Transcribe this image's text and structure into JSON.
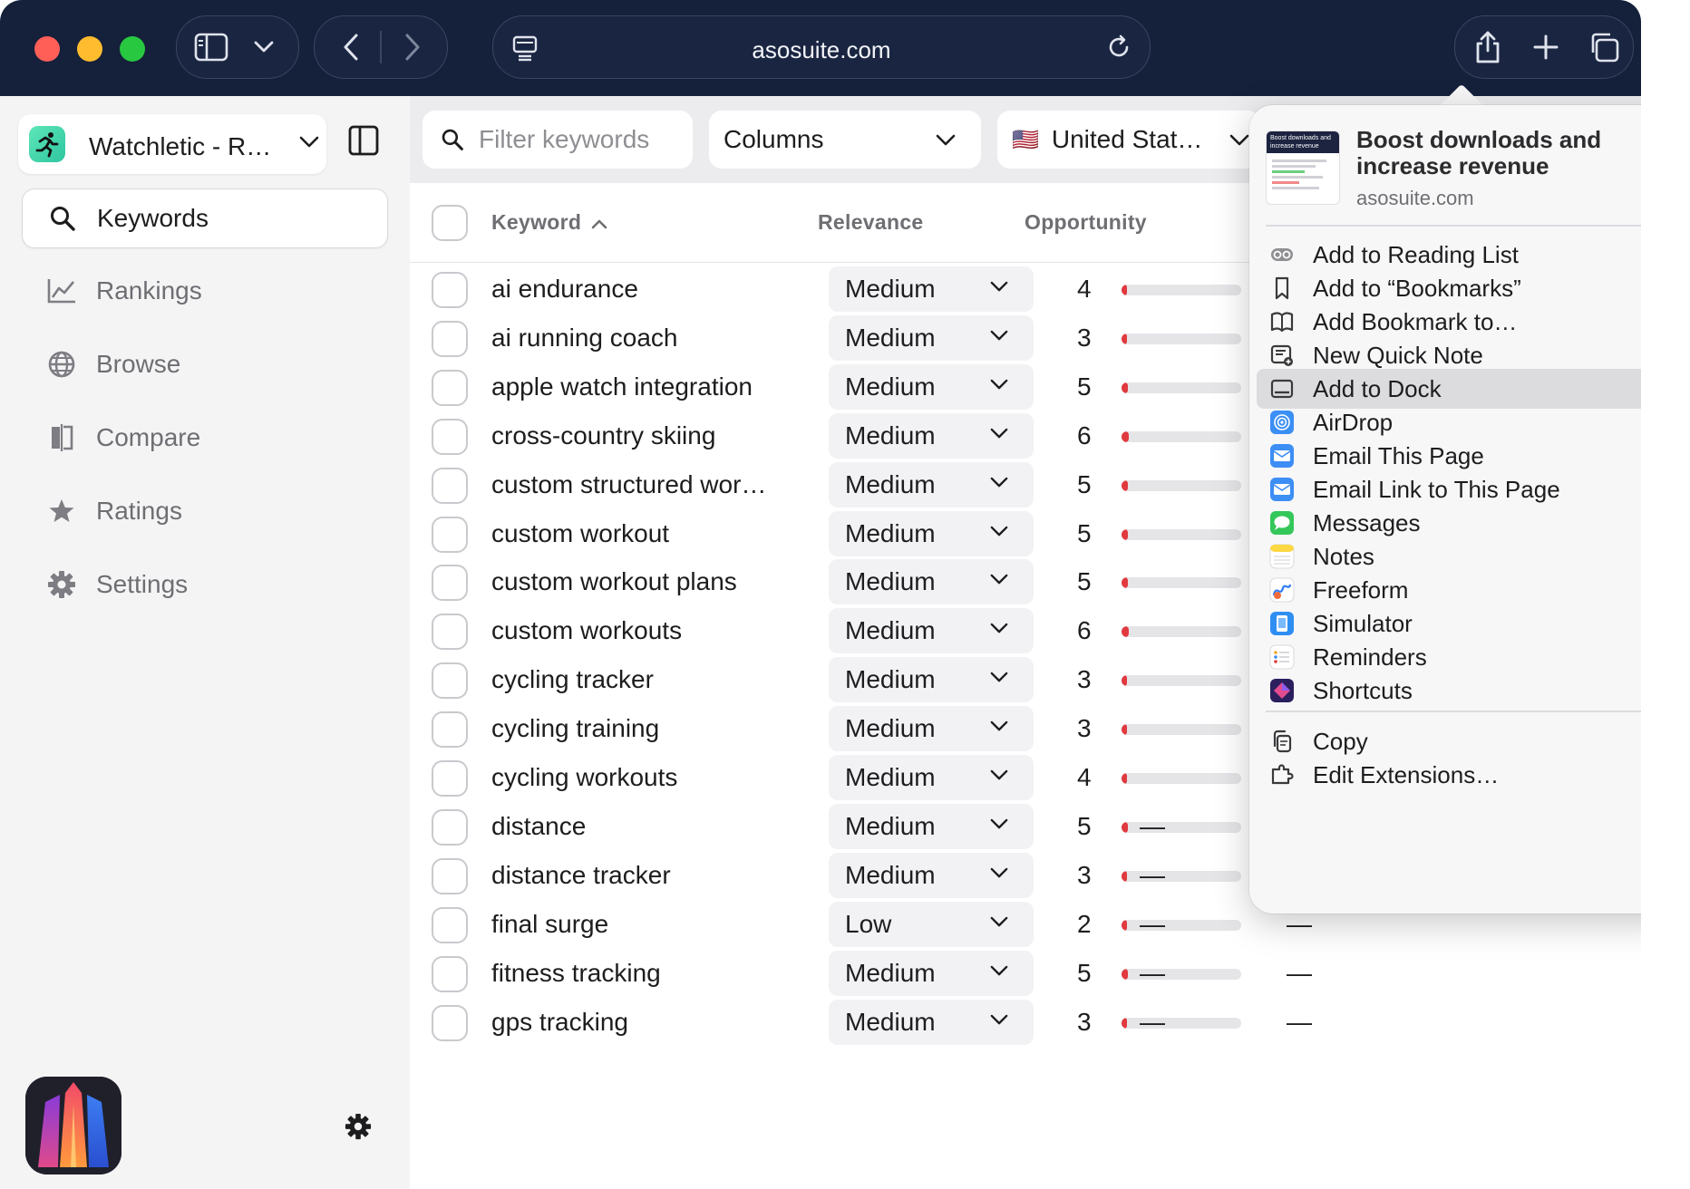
{
  "browser": {
    "url": "asosuite.com",
    "colors": {
      "chrome": "#15203b",
      "close": "#ff5f57",
      "minimize": "#febc2e",
      "zoom": "#28c840"
    }
  },
  "sidebar": {
    "app_name": "Watchletic - R…",
    "items": [
      {
        "label": "Keywords",
        "icon": "search-icon",
        "active": true
      },
      {
        "label": "Rankings",
        "icon": "line-chart-icon",
        "active": false
      },
      {
        "label": "Browse",
        "icon": "globe-icon",
        "active": false
      },
      {
        "label": "Compare",
        "icon": "compare-icon",
        "active": false
      },
      {
        "label": "Ratings",
        "icon": "star-icon",
        "active": false
      },
      {
        "label": "Settings",
        "icon": "gear-icon",
        "active": false
      }
    ]
  },
  "toolbar": {
    "filter_placeholder": "Filter keywords",
    "columns_label": "Columns",
    "country_label": "United Stat…",
    "country_flag": "🇺🇸"
  },
  "table": {
    "headers": {
      "keyword": "Keyword",
      "relevance": "Relevance",
      "opportunity": "Opportunity"
    },
    "rows": [
      {
        "keyword": "ai endurance",
        "relevance": "Medium",
        "opportunity": "4",
        "opp_level": 0.04,
        "col4": "",
        "col5": ""
      },
      {
        "keyword": "ai running coach",
        "relevance": "Medium",
        "opportunity": "3",
        "opp_level": 0.03,
        "col4": "",
        "col5": ""
      },
      {
        "keyword": "apple watch integration",
        "relevance": "Medium",
        "opportunity": "5",
        "opp_level": 0.05,
        "col4": "",
        "col5": ""
      },
      {
        "keyword": "cross-country skiing",
        "relevance": "Medium",
        "opportunity": "6",
        "opp_level": 0.06,
        "col4": "",
        "col5": ""
      },
      {
        "keyword": "custom structured wor…",
        "relevance": "Medium",
        "opportunity": "5",
        "opp_level": 0.05,
        "col4": "",
        "col5": ""
      },
      {
        "keyword": "custom workout",
        "relevance": "Medium",
        "opportunity": "5",
        "opp_level": 0.05,
        "col4": "",
        "col5": ""
      },
      {
        "keyword": "custom workout plans",
        "relevance": "Medium",
        "opportunity": "5",
        "opp_level": 0.05,
        "col4": "",
        "col5": ""
      },
      {
        "keyword": "custom workouts",
        "relevance": "Medium",
        "opportunity": "6",
        "opp_level": 0.06,
        "col4": "",
        "col5": ""
      },
      {
        "keyword": "cycling tracker",
        "relevance": "Medium",
        "opportunity": "3",
        "opp_level": 0.03,
        "col4": "",
        "col5": ""
      },
      {
        "keyword": "cycling training",
        "relevance": "Medium",
        "opportunity": "3",
        "opp_level": 0.03,
        "col4": "",
        "col5": ""
      },
      {
        "keyword": "cycling workouts",
        "relevance": "Medium",
        "opportunity": "4",
        "opp_level": 0.04,
        "col4": "",
        "col5": ""
      },
      {
        "keyword": "distance",
        "relevance": "Medium",
        "opportunity": "5",
        "opp_level": 0.05,
        "col4": "—",
        "col5": "—"
      },
      {
        "keyword": "distance tracker",
        "relevance": "Medium",
        "opportunity": "3",
        "opp_level": 0.03,
        "col4": "—",
        "col5": "—"
      },
      {
        "keyword": "final surge",
        "relevance": "Low",
        "opportunity": "2",
        "opp_level": 0.02,
        "col4": "—",
        "col5": "—"
      },
      {
        "keyword": "fitness tracking",
        "relevance": "Medium",
        "opportunity": "5",
        "opp_level": 0.05,
        "col4": "—",
        "col5": "—"
      },
      {
        "keyword": "gps tracking",
        "relevance": "Medium",
        "opportunity": "3",
        "opp_level": 0.03,
        "col4": "—",
        "col5": "—"
      }
    ]
  },
  "share_menu": {
    "preview_title": "Boost downloads and increase revenue",
    "preview_url": "asosuite.com",
    "preview_thumb_text": "Boost downloads and increase revenue",
    "group1": [
      {
        "label": "Add to Reading List",
        "icon": "reading-list-icon"
      },
      {
        "label": "Add to “Bookmarks”",
        "icon": "bookmark-icon"
      },
      {
        "label": "Add Bookmark to…",
        "icon": "book-icon"
      },
      {
        "label": "New Quick Note",
        "icon": "quick-note-icon"
      },
      {
        "label": "Add to Dock",
        "icon": "dock-icon",
        "highlighted": true
      },
      {
        "label": "AirDrop",
        "icon": "airdrop-icon"
      },
      {
        "label": "Email This Page",
        "icon": "mail-icon"
      },
      {
        "label": "Email Link to This Page",
        "icon": "mail-icon"
      },
      {
        "label": "Messages",
        "icon": "messages-icon"
      },
      {
        "label": "Notes",
        "icon": "notes-icon"
      },
      {
        "label": "Freeform",
        "icon": "freeform-icon"
      },
      {
        "label": "Simulator",
        "icon": "simulator-icon"
      },
      {
        "label": "Reminders",
        "icon": "reminders-icon"
      },
      {
        "label": "Shortcuts",
        "icon": "shortcuts-icon"
      }
    ],
    "group2": [
      {
        "label": "Copy",
        "icon": "copy-icon"
      },
      {
        "label": "Edit Extensions…",
        "icon": "extensions-icon"
      }
    ]
  }
}
